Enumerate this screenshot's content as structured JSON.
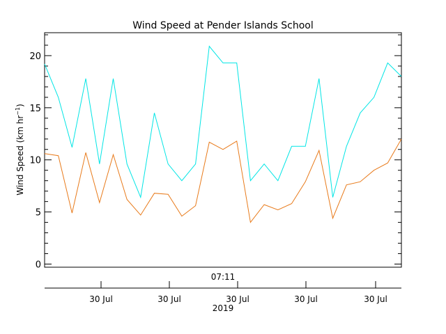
{
  "chart_data": {
    "type": "line",
    "title": "Wind Speed at Pender Islands School",
    "ylabel_main": "Wind Speed (km hr",
    "ylabel_sup": "−1",
    "ylabel_close": ")",
    "ylim": [
      -0.3,
      22.2
    ],
    "yticks": [
      0,
      5,
      10,
      15,
      20
    ],
    "grid": false,
    "time_label": "07:11",
    "x_tick_labels": [
      "30 Jul",
      "30 Jul",
      "30 Jul",
      "30 Jul",
      "30 Jul"
    ],
    "year_label": "2019",
    "series": [
      {
        "color": "#00e5e5",
        "values": [
          19.2,
          16.0,
          11.2,
          17.8,
          9.6,
          17.8,
          9.6,
          6.4,
          14.5,
          9.6,
          8.0,
          9.6,
          20.9,
          19.3,
          19.3,
          8.0,
          9.6,
          8.0,
          11.3,
          11.3,
          17.8,
          6.4,
          11.3,
          14.5,
          16.0,
          19.3,
          18.0
        ]
      },
      {
        "color": "#e87a1a",
        "values": [
          10.6,
          10.4,
          4.9,
          10.7,
          5.9,
          10.5,
          6.2,
          4.7,
          6.8,
          6.7,
          4.6,
          5.6,
          11.7,
          11.0,
          11.8,
          4.0,
          5.7,
          5.2,
          5.8,
          7.9,
          10.9,
          4.4,
          7.6,
          7.9,
          9.0,
          9.7,
          12.0
        ]
      }
    ]
  }
}
